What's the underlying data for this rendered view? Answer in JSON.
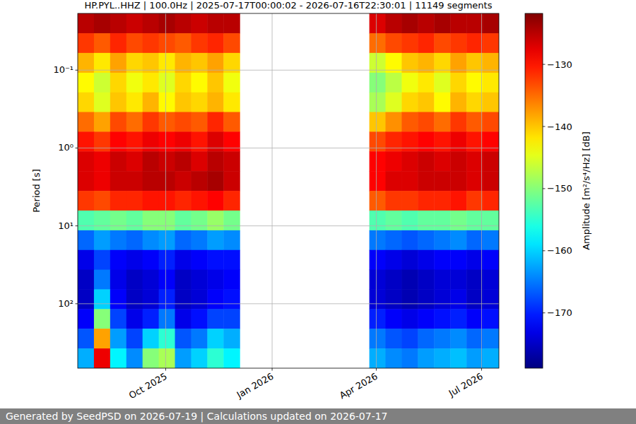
{
  "chart_data": {
    "type": "heatmap",
    "title": "HP.PYL..HHZ | 100.0Hz | 2025-07-17T00:00:02 - 2026-07-16T22:30:01 | 11149 segments",
    "y_label": "Period [s]",
    "footer": "Generated by SeedPSD on 2026-07-19 | Calculations updated on 2026-07-17",
    "log": "y",
    "grid": true,
    "x_edges": [
      "2025-07-17",
      "2025-07-31",
      "2025-08-14",
      "2025-08-28",
      "2025-09-11",
      "2025-09-25",
      "2025-10-09",
      "2025-10-23",
      "2025-11-06",
      "2025-11-20",
      "2025-12-04",
      "2025-12-18",
      "2026-01-01",
      "2026-01-15",
      "2026-01-29",
      "2026-02-12",
      "2026-02-26",
      "2026-03-12",
      "2026-03-26",
      "2026-04-09",
      "2026-04-23",
      "2026-05-07",
      "2026-05-21",
      "2026-06-04",
      "2026-06-18",
      "2026-07-02",
      "2026-07-16"
    ],
    "y_edges": [
      0.0187,
      0.0336,
      0.0601,
      0.108,
      0.193,
      0.345,
      0.618,
      1.107,
      1.98,
      3.55,
      6.35,
      11.4,
      20.4,
      36.5,
      65.3,
      117,
      209,
      375,
      672
    ],
    "xlim": [
      "2025-07-17",
      "2026-07-16"
    ],
    "xticks": [
      {
        "value": "2025-10-01",
        "label": "Oct 2025"
      },
      {
        "value": "2026-01-01",
        "label": "Jan 2026"
      },
      {
        "value": "2026-04-01",
        "label": "Apr 2026"
      },
      {
        "value": "2026-07-01",
        "label": "Jul 2026"
      }
    ],
    "ylim": [
      672,
      0.0187
    ],
    "yticks": [
      {
        "value": 0.1,
        "label": "10⁻¹"
      },
      {
        "value": 1,
        "label": "10⁰"
      },
      {
        "value": 10,
        "label": "10¹"
      },
      {
        "value": 100,
        "label": "10²"
      }
    ],
    "values": [
      [
        -125,
        -124,
        -125,
        -126,
        -125,
        -124,
        -125,
        -126,
        -125,
        -125,
        null,
        null,
        null,
        null,
        null,
        null,
        null,
        null,
        -127,
        -125,
        -124,
        -125,
        -124,
        -125,
        -125,
        -124
      ],
      [
        -132,
        -134,
        -131,
        -133,
        -132,
        -133,
        -134,
        -132,
        -131,
        -133,
        null,
        null,
        null,
        null,
        null,
        null,
        null,
        null,
        -135,
        -133,
        -132,
        -131,
        -133,
        -132,
        -131,
        -132
      ],
      [
        -139,
        -142,
        -138,
        -141,
        -140,
        -142,
        -139,
        -140,
        -138,
        -141,
        null,
        null,
        null,
        null,
        null,
        null,
        null,
        null,
        -146,
        -143,
        -140,
        -139,
        -141,
        -138,
        -140,
        -139
      ],
      [
        -143,
        -146,
        -141,
        -144,
        -142,
        -145,
        -141,
        -143,
        -140,
        -144,
        null,
        null,
        null,
        null,
        null,
        null,
        null,
        null,
        -150,
        -147,
        -144,
        -142,
        -145,
        -141,
        -143,
        -142
      ],
      [
        -141,
        -145,
        -140,
        -142,
        -139,
        -143,
        -140,
        -141,
        -139,
        -142,
        null,
        null,
        null,
        null,
        null,
        null,
        null,
        null,
        -148,
        -145,
        -141,
        -140,
        -143,
        -139,
        -141,
        -140
      ],
      [
        -135,
        -138,
        -133,
        -135,
        -132,
        -134,
        -133,
        -134,
        -131,
        -134,
        null,
        null,
        null,
        null,
        null,
        null,
        null,
        null,
        -140,
        -137,
        -134,
        -133,
        -135,
        -132,
        -134,
        -133
      ],
      [
        -130,
        -132,
        -129,
        -130,
        -128,
        -129,
        -128,
        -130,
        -127,
        -129,
        null,
        null,
        null,
        null,
        null,
        null,
        null,
        null,
        -133,
        -131,
        -130,
        -129,
        -130,
        -128,
        -130,
        -129
      ],
      [
        -127,
        -128,
        -126,
        -127,
        -125,
        -126,
        -125,
        -127,
        -125,
        -126,
        null,
        null,
        null,
        null,
        null,
        null,
        null,
        null,
        -129,
        -128,
        -127,
        -126,
        -127,
        -126,
        -127,
        -126
      ],
      [
        -127,
        -128,
        -126,
        -126,
        -125,
        -125,
        -126,
        -125,
        -124,
        -126,
        null,
        null,
        null,
        null,
        null,
        null,
        null,
        null,
        -129,
        -127,
        -127,
        -126,
        -126,
        -126,
        -127,
        -126
      ],
      [
        -132,
        -133,
        -131,
        -131,
        -130,
        -130,
        -131,
        -130,
        -129,
        -131,
        null,
        null,
        null,
        null,
        null,
        null,
        null,
        null,
        -134,
        -132,
        -132,
        -131,
        -131,
        -130,
        -132,
        -131
      ],
      [
        -153,
        -152,
        -151,
        -152,
        -150,
        -150,
        -152,
        -151,
        -149,
        -151,
        null,
        null,
        null,
        null,
        null,
        null,
        null,
        null,
        -153,
        -152,
        -153,
        -152,
        -152,
        -151,
        -152,
        -152
      ],
      [
        -166,
        -163,
        -165,
        -166,
        -164,
        -163,
        -166,
        -165,
        -163,
        -164,
        null,
        null,
        null,
        null,
        null,
        null,
        null,
        null,
        -165,
        -166,
        -167,
        -166,
        -165,
        -164,
        -166,
        -165
      ],
      [
        -173,
        -168,
        -172,
        -173,
        -172,
        -170,
        -173,
        -172,
        -171,
        -171,
        null,
        null,
        null,
        null,
        null,
        null,
        null,
        null,
        -172,
        -173,
        -174,
        -173,
        -172,
        -172,
        -173,
        -172
      ],
      [
        -175,
        -165,
        -173,
        -175,
        -174,
        -172,
        -175,
        -174,
        -173,
        -172,
        null,
        null,
        null,
        null,
        null,
        null,
        null,
        null,
        -174,
        -175,
        -176,
        -175,
        -174,
        -174,
        -175,
        -174
      ],
      [
        -175,
        -160,
        -172,
        -175,
        -174,
        -170,
        -175,
        -174,
        -172,
        -171,
        null,
        null,
        null,
        null,
        null,
        null,
        null,
        null,
        -174,
        -175,
        -176,
        -175,
        -174,
        -173,
        -175,
        -174
      ],
      [
        -172,
        -150,
        -168,
        -173,
        -170,
        -165,
        -173,
        -171,
        -168,
        -168,
        null,
        null,
        null,
        null,
        null,
        null,
        null,
        null,
        -170,
        -172,
        -173,
        -172,
        -171,
        -170,
        -172,
        -171
      ],
      [
        -167,
        -138,
        -163,
        -168,
        -160,
        -155,
        -167,
        -165,
        -160,
        -162,
        null,
        null,
        null,
        null,
        null,
        null,
        null,
        null,
        -165,
        -167,
        -168,
        -166,
        -165,
        -164,
        -166,
        -165
      ],
      [
        -162,
        -128,
        -158,
        -164,
        -150,
        -148,
        -163,
        -160,
        -155,
        -158,
        null,
        null,
        null,
        null,
        null,
        null,
        null,
        null,
        -162,
        -164,
        -165,
        -163,
        -162,
        -161,
        -163,
        -162
      ]
    ],
    "colorbar": {
      "label": "Amplitude [m²/s⁴/Hz] [dB]",
      "range": [
        -178.9,
        -121.8
      ],
      "ticks": [
        {
          "value": -130,
          "label": "−130"
        },
        {
          "value": -140,
          "label": "−140"
        },
        {
          "value": -150,
          "label": "−150"
        },
        {
          "value": -160,
          "label": "−160"
        },
        {
          "value": -170,
          "label": "−170"
        }
      ]
    }
  }
}
